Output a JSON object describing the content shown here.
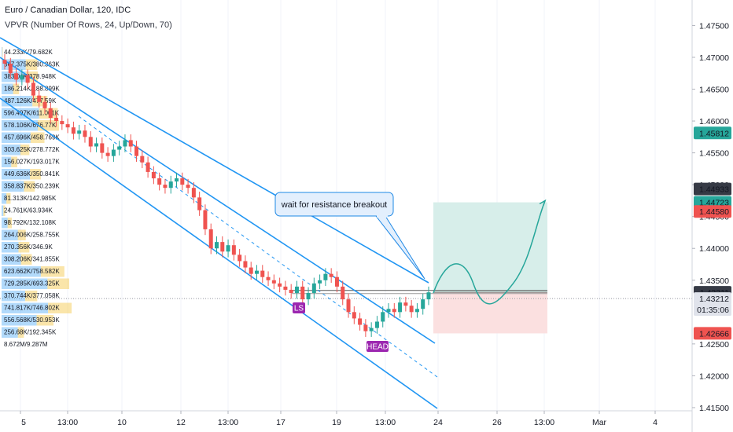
{
  "header": {
    "title": "Euro / Canadian Dollar, 120, IDC",
    "indicator": "VPVR (Number Of Rows, 24, Up/Down, 70)"
  },
  "colors": {
    "channel": "#2196f3",
    "bull": "#26a69a",
    "bear": "#ef5350",
    "label_green": "#26a69a",
    "label_red": "#ef5350",
    "label_dark": "#363a45",
    "label_gray": "#e0e3eb",
    "vp_up": "#2196f3",
    "vp_down": "#f5c542",
    "pattern": "#9c27b0",
    "profit_zone": "#d7eeea",
    "loss_zone": "#fbe0e0",
    "projection": "#26a69a"
  },
  "chart_data": {
    "type": "candlestick",
    "symbol": "EURCAD",
    "timeframe": "120",
    "y_axis": {
      "ticks": [
        "1.47500",
        "1.47000",
        "1.46500",
        "1.46000",
        "1.45500",
        "1.45000",
        "1.44500",
        "1.44000",
        "1.43500",
        "1.42500",
        "1.42000",
        "1.41500"
      ],
      "range": [
        1.4145,
        1.479
      ]
    },
    "x_axis": {
      "labels": [
        "5",
        "13:00",
        "10",
        "13:00",
        "12",
        "13:00",
        "17",
        "13:00",
        "19",
        "13:00",
        "24",
        "26",
        "13:00",
        "Mar",
        "4"
      ]
    },
    "price_labels": [
      {
        "text": "1.45812",
        "value": 1.45812,
        "style": "green"
      },
      {
        "text": "1.44933",
        "value": 1.44933,
        "style": "dark"
      },
      {
        "text": "1.44723",
        "value": 1.44723,
        "style": "green"
      },
      {
        "text": "1.44580",
        "value": 1.4458,
        "style": "red"
      },
      {
        "text": "1.43311",
        "value": 1.43311,
        "style": "dark"
      },
      {
        "text": "1.43212",
        "value": 1.43212,
        "style": "gray"
      },
      {
        "text": "01:35:06",
        "value": 1.4304,
        "style": "gray"
      },
      {
        "text": "1.42666",
        "value": 1.42666,
        "style": "red"
      }
    ],
    "last_price": 1.43212,
    "volume_profile": [
      {
        "label": "44.233K/79.682K",
        "up": 0.012,
        "down": 0.008
      },
      {
        "label": "367.375K/380.363K",
        "up": 0.4,
        "down": 0.19
      },
      {
        "label": "383.04K/378.948K",
        "up": 0.4,
        "down": 0.2
      },
      {
        "label": "186.214K/188.899K",
        "up": 0.19,
        "down": 0.1
      },
      {
        "label": "487.126K/477.59K",
        "up": 0.51,
        "down": 0.25
      },
      {
        "label": "596.497K/611.001K",
        "up": 0.62,
        "down": 0.31
      },
      {
        "label": "578.106K/676.77K",
        "up": 0.6,
        "down": 0.35
      },
      {
        "label": "457.696K/458.769K",
        "up": 0.48,
        "down": 0.23
      },
      {
        "label": "303.625K/278.772K",
        "up": 0.31,
        "down": 0.15
      },
      {
        "label": "156.027K/193.017K",
        "up": 0.16,
        "down": 0.1
      },
      {
        "label": "449.636K/350.841K",
        "up": 0.47,
        "down": 0.18
      },
      {
        "label": "358.837K/350.239K",
        "up": 0.37,
        "down": 0.18
      },
      {
        "label": "81.313K/142.985K",
        "up": 0.08,
        "down": 0.07
      },
      {
        "label": "24.761K/63.934K",
        "up": 0.03,
        "down": 0.03
      },
      {
        "label": "98.792K/132.108K",
        "up": 0.1,
        "down": 0.07
      },
      {
        "label": "264.006K/258.755K",
        "up": 0.27,
        "down": 0.13
      },
      {
        "label": "270.356K/346.9K",
        "up": 0.28,
        "down": 0.18
      },
      {
        "label": "308.206K/341.855K",
        "up": 0.32,
        "down": 0.18
      },
      {
        "label": "623.662K/758.582K",
        "up": 0.65,
        "down": 0.39
      },
      {
        "label": "729.285K/693.325K",
        "up": 0.76,
        "down": 0.36
      },
      {
        "label": "370.744K/377.058K",
        "up": 0.39,
        "down": 0.2
      },
      {
        "label": "741.817K/746.802K",
        "up": 0.77,
        "down": 0.39
      },
      {
        "label": "556.568K/530.953K",
        "up": 0.58,
        "down": 0.28
      },
      {
        "label": "256.68K/192.345K",
        "up": 0.27,
        "down": 0.1
      },
      {
        "label": "8.672M/9.287M",
        "up": 0,
        "down": 0
      }
    ],
    "annotations": {
      "callout": "wait for resistance breakout",
      "pattern_labels": [
        "LS",
        "HEAD"
      ]
    },
    "series": [
      {
        "name": "EURCAD",
        "values": [
          1.469,
          1.4675,
          1.4665,
          1.4672,
          1.466,
          1.464,
          1.463,
          1.462,
          1.4605,
          1.46,
          1.4595,
          1.459,
          1.458,
          1.4585,
          1.4575,
          1.456,
          1.4565,
          1.455,
          1.4545,
          1.4555,
          1.456,
          1.457,
          1.456,
          1.4545,
          1.4535,
          1.452,
          1.451,
          1.45,
          1.4495,
          1.4505,
          1.451,
          1.45,
          1.4495,
          1.448,
          1.446,
          1.443,
          1.44,
          1.441,
          1.4395,
          1.4405,
          1.439,
          1.438,
          1.437,
          1.436,
          1.4365,
          1.4355,
          1.435,
          1.4345,
          1.434,
          1.4335,
          1.433,
          1.434,
          1.432,
          1.433,
          1.4345,
          1.435,
          1.436,
          1.4355,
          1.434,
          1.432,
          1.43,
          1.429,
          1.428,
          1.427,
          1.4275,
          1.4285,
          1.43,
          1.4305,
          1.43,
          1.4315,
          1.431,
          1.43,
          1.4305,
          1.432,
          1.4331
        ]
      }
    ]
  }
}
